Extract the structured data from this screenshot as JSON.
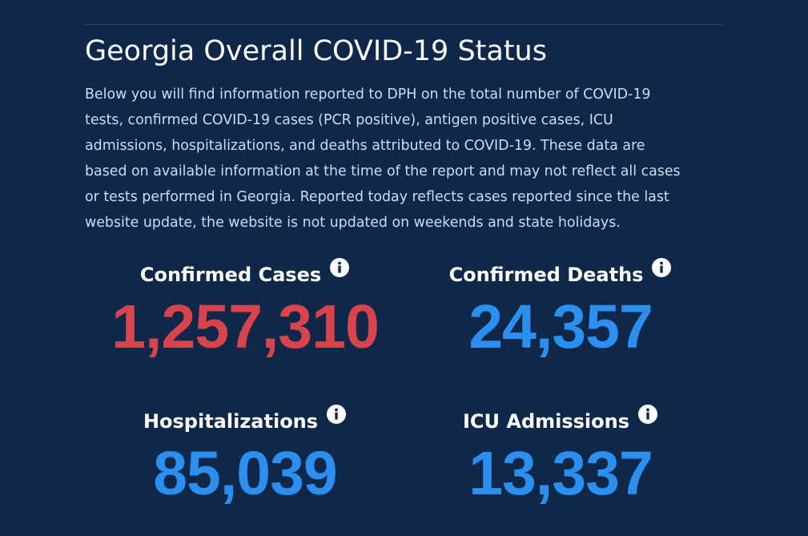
{
  "header": {
    "title": "Georgia Overall COVID-19 Status",
    "description_lines": [
      "Below you will find information reported to DPH on the total number of COVID-19",
      "tests, confirmed COVID-19 cases (PCR positive), antigen positive cases, ICU",
      "admissions, hospitalizations, and deaths attributed to COVID-19. These data are",
      "based on available information at the time of the report and may not reflect all cases",
      "or tests performed in Georgia. Reported today reflects cases reported since the last",
      "website update, the website is not updated on weekends and state holidays."
    ]
  },
  "stats": {
    "confirmed_cases": {
      "label": "Confirmed Cases",
      "value": "1,257,310",
      "color": "#d9434b",
      "icon": "info-icon"
    },
    "confirmed_deaths": {
      "label": "Confirmed Deaths",
      "value": "24,357",
      "color": "#2a8fef",
      "icon": "info-icon"
    },
    "hospitalizations": {
      "label": "Hospitalizations",
      "value": "85,039",
      "color": "#2a8fef",
      "icon": "info-icon"
    },
    "icu_admissions": {
      "label": "ICU Admissions",
      "value": "13,337",
      "color": "#2a8fef",
      "icon": "info-icon"
    }
  },
  "colors": {
    "background": "#0f2849",
    "description_text": "#c8def3",
    "accent_red": "#d9434b",
    "accent_blue": "#2a8fef"
  }
}
